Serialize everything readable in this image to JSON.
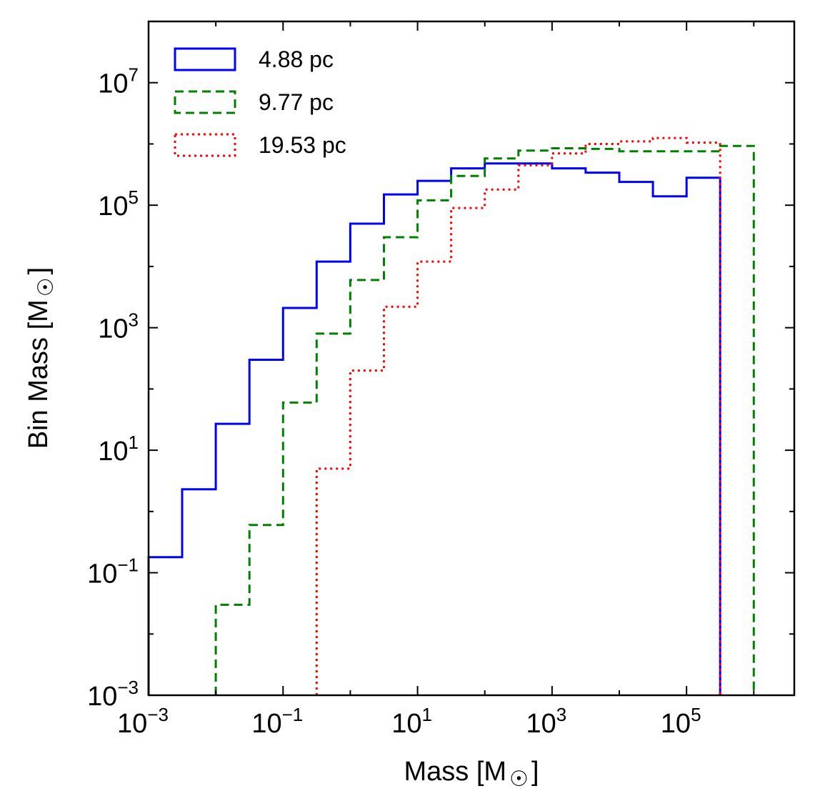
{
  "chart_data": {
    "type": "step",
    "xlabel": "Mass [M",
    "ylabel": "Bin Mass [M",
    "label_symbol": "☉",
    "label_close": "]",
    "xscale": "log",
    "yscale": "log",
    "xlim": [
      0.001,
      4000000
    ],
    "ylim": [
      0.001,
      100000000
    ],
    "xticks": [
      {
        "value": 0.001,
        "base": "10",
        "exp": "−3"
      },
      {
        "value": 0.1,
        "base": "10",
        "exp": "−1"
      },
      {
        "value": 10,
        "base": "10",
        "exp": "1"
      },
      {
        "value": 1000,
        "base": "10",
        "exp": "3"
      },
      {
        "value": 100000,
        "base": "10",
        "exp": "5"
      }
    ],
    "yticks": [
      {
        "value": 0.001,
        "base": "10",
        "exp": "−3"
      },
      {
        "value": 0.1,
        "base": "10",
        "exp": "−1"
      },
      {
        "value": 10,
        "base": "10",
        "exp": "1"
      },
      {
        "value": 1000,
        "base": "10",
        "exp": "3"
      },
      {
        "value": 100000,
        "base": "10",
        "exp": "5"
      },
      {
        "value": 10000000,
        "base": "10",
        "exp": "7"
      }
    ],
    "legend_position": "upper-left",
    "grid": false,
    "series": [
      {
        "name": "4.88 pc",
        "color": "#0000ff",
        "dash": "solid",
        "bin_edges": [
          0.001,
          0.00316,
          0.01,
          0.0316,
          0.1,
          0.316,
          1,
          3.16,
          10,
          31.6,
          100,
          316,
          1000,
          3160,
          10000,
          31600,
          100000,
          316000
        ],
        "values": [
          0.18,
          2.3,
          27,
          300,
          2100,
          12000,
          50000,
          150000,
          250000,
          400000,
          480000,
          480000,
          400000,
          340000,
          240000,
          140000,
          280000
        ]
      },
      {
        "name": "9.77 pc",
        "color": "#008000",
        "dash": "dashed",
        "bin_edges": [
          0.01,
          0.0316,
          0.1,
          0.316,
          1,
          3.16,
          10,
          31.6,
          100,
          316,
          1000,
          3160,
          10000,
          31600,
          100000,
          316000,
          1000000
        ],
        "values": [
          0.03,
          0.6,
          60,
          800,
          6000,
          30000,
          120000,
          300000,
          580000,
          780000,
          850000,
          830000,
          760000,
          760000,
          760000,
          930000
        ]
      },
      {
        "name": "19.53 pc",
        "color": "#ff0000",
        "dash": "dotted",
        "bin_edges": [
          0.316,
          1,
          3.16,
          10,
          31.6,
          100,
          316,
          1000,
          3160,
          10000,
          31600,
          100000,
          316000
        ],
        "values": [
          5,
          200,
          2200,
          12000,
          90000,
          180000,
          450000,
          700000,
          1000000,
          1100000,
          1250000,
          1050000
        ]
      }
    ]
  }
}
